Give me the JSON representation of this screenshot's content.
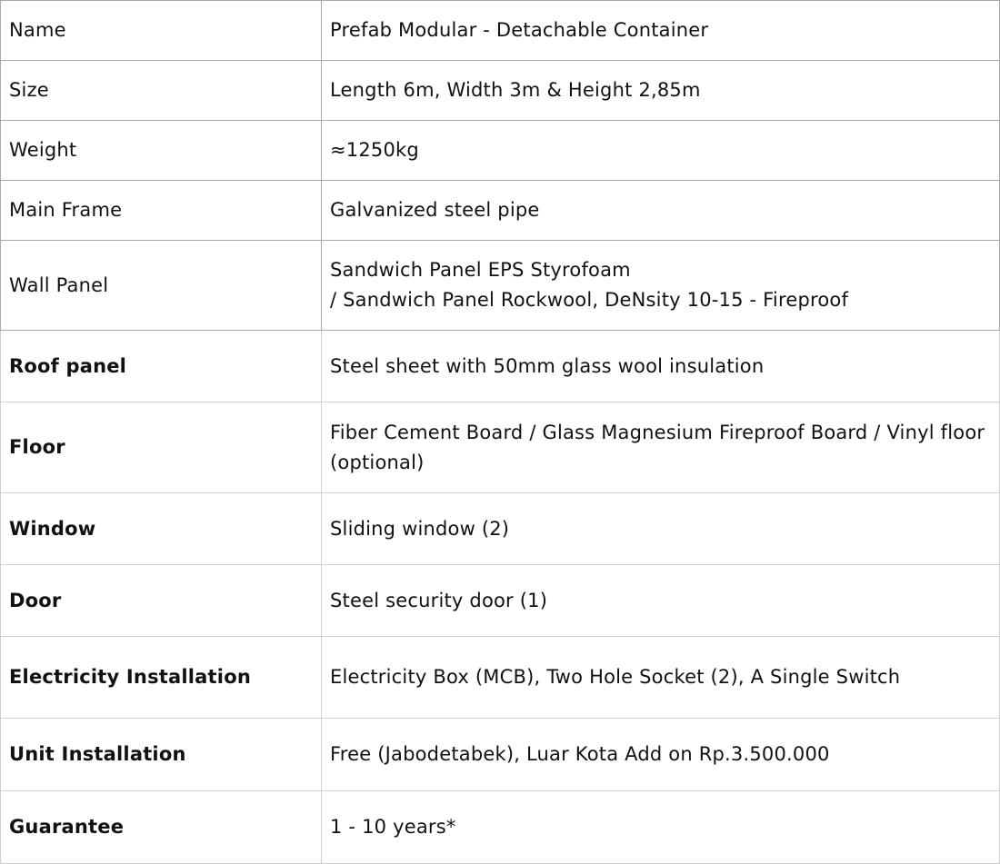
{
  "rows": [
    {
      "label": "Name",
      "value": "Prefab Modular - Detachable Container",
      "bold": false
    },
    {
      "label": "Size",
      "value": "Length 6m, Width 3m & Height 2,85m",
      "bold": false
    },
    {
      "label": "Weight",
      "value": "≈1250kg",
      "bold": false
    },
    {
      "label": "Main Frame",
      "value": "Galvanized steel pipe",
      "bold": false
    },
    {
      "label": "Wall Panel",
      "value": "Sandwich Panel EPS Styrofoam\n/ Sandwich Panel Rockwool, DeNsity 10-15 - Fireproof",
      "bold": false
    },
    {
      "label": "Roof panel",
      "value": "Steel sheet with 50mm glass wool insulation",
      "bold": true
    },
    {
      "label": "Floor",
      "value": "Fiber Cement Board / Glass Magnesium Fireproof Board / Vinyl floor (optional)",
      "bold": true
    },
    {
      "label": "Window",
      "value": "Sliding window (2)",
      "bold": true
    },
    {
      "label": "Door",
      "value": "Steel security door (1)",
      "bold": true
    },
    {
      "label": "Electricity Installation",
      "value": "Electricity Box (MCB), Two Hole Socket (2), A Single Switch",
      "bold": true
    },
    {
      "label": "Unit Installation",
      "value": "Free (Jabodetabek), Luar Kota Add on Rp.3.500.000",
      "bold": true
    },
    {
      "label": "Guarantee",
      "value": "1 - 10 years*",
      "bold": true
    }
  ]
}
